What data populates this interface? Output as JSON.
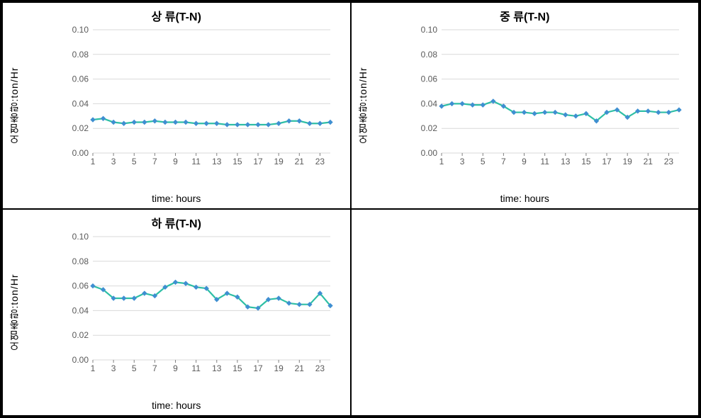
{
  "layout": {
    "rows": 2,
    "cols": 2
  },
  "common": {
    "type": "line",
    "xlabel": "time: hours",
    "ylabel": "오염총량:ton/Hr",
    "x": [
      1,
      2,
      3,
      4,
      5,
      6,
      7,
      8,
      9,
      10,
      11,
      12,
      13,
      14,
      15,
      16,
      17,
      18,
      19,
      20,
      21,
      22,
      23,
      24
    ],
    "xticks": [
      1,
      3,
      5,
      7,
      9,
      11,
      13,
      15,
      17,
      19,
      21,
      23
    ],
    "yticks": [
      0.0,
      0.02,
      0.04,
      0.06,
      0.08,
      0.1
    ],
    "ylim": [
      0.0,
      0.1
    ],
    "grid_color": "#d9d9d9",
    "background_color": "#ffffff",
    "tick_color": "#595959",
    "title_fontsize": 16,
    "label_fontsize": 14,
    "tick_fontsize": 12,
    "line_color": "#2ebfa5",
    "marker_color": "#3f8fd1",
    "line_width": 2.2,
    "marker_size": 3
  },
  "charts": [
    {
      "title": "상 류(T-N)",
      "values": [
        0.027,
        0.028,
        0.025,
        0.024,
        0.025,
        0.025,
        0.026,
        0.025,
        0.025,
        0.025,
        0.024,
        0.024,
        0.024,
        0.023,
        0.023,
        0.023,
        0.023,
        0.023,
        0.024,
        0.026,
        0.026,
        0.024,
        0.024,
        0.025
      ]
    },
    {
      "title": "중 류(T-N)",
      "values": [
        0.038,
        0.04,
        0.04,
        0.039,
        0.039,
        0.042,
        0.038,
        0.033,
        0.033,
        0.032,
        0.033,
        0.033,
        0.031,
        0.03,
        0.032,
        0.026,
        0.033,
        0.035,
        0.029,
        0.034,
        0.034,
        0.033,
        0.033,
        0.035
      ]
    },
    {
      "title": "하 류(T-N)",
      "values": [
        0.06,
        0.057,
        0.05,
        0.05,
        0.05,
        0.054,
        0.052,
        0.059,
        0.063,
        0.062,
        0.059,
        0.058,
        0.049,
        0.054,
        0.051,
        0.043,
        0.042,
        0.049,
        0.05,
        0.046,
        0.045,
        0.045,
        0.054,
        0.044
      ]
    }
  ]
}
